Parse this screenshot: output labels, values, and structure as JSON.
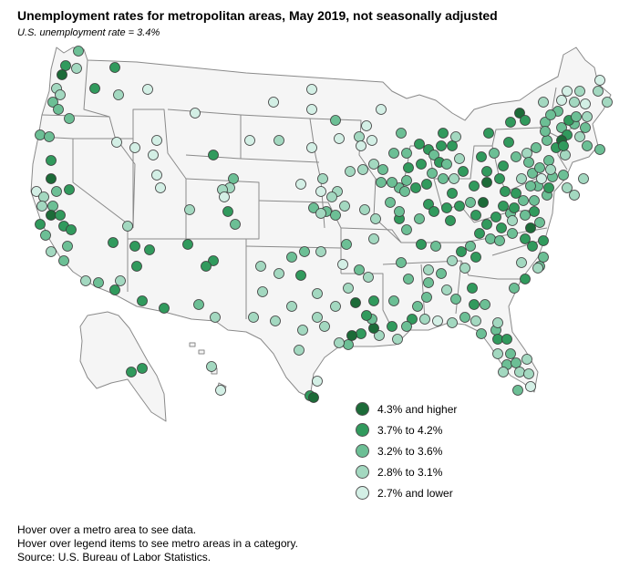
{
  "header": {
    "title": "Unemployment rates for metropolitan areas, May 2019, not seasonally adjusted",
    "subtitle": "U.S. unemployment rate = 3.4%"
  },
  "legend": {
    "items": [
      {
        "label": "4.3% and higher",
        "color": "#1c6b38",
        "cat": 0
      },
      {
        "label": "3.7% to 4.2%",
        "color": "#319a5d",
        "cat": 1
      },
      {
        "label": "3.2% to 3.6%",
        "color": "#6cbf95",
        "cat": 2
      },
      {
        "label": "2.8% to 3.1%",
        "color": "#a3d8c0",
        "cat": 3
      },
      {
        "label": "2.7% and lower",
        "color": "#d3efe5",
        "cat": 4
      }
    ]
  },
  "notes": {
    "hover_metro": "Hover over a metro area to see data.",
    "hover_legend": "Hover over legend items to see metro areas in a category.",
    "source": "Source: U.S. Bureau of Labor Statistics."
  },
  "map": {
    "metro_points": [
      [
        86,
        56,
        2
      ],
      [
        72,
        72,
        1
      ],
      [
        68,
        82,
        0
      ],
      [
        84,
        75,
        3
      ],
      [
        104,
        97,
        1
      ],
      [
        126,
        74,
        1
      ],
      [
        130,
        104,
        3
      ],
      [
        162,
        98,
        4
      ],
      [
        214,
        124,
        4
      ],
      [
        62,
        97,
        3
      ],
      [
        66,
        104,
        3
      ],
      [
        58,
        112,
        2
      ],
      [
        64,
        120,
        2
      ],
      [
        76,
        130,
        2
      ],
      [
        44,
        148,
        2
      ],
      [
        54,
        150,
        2
      ],
      [
        56,
        176,
        1
      ],
      [
        56,
        196,
        0
      ],
      [
        62,
        210,
        2
      ],
      [
        76,
        208,
        1
      ],
      [
        40,
        210,
        4
      ],
      [
        48,
        216,
        3
      ],
      [
        46,
        226,
        3
      ],
      [
        58,
        226,
        2
      ],
      [
        56,
        236,
        0
      ],
      [
        66,
        236,
        1
      ],
      [
        70,
        248,
        1
      ],
      [
        78,
        252,
        1
      ],
      [
        44,
        246,
        1
      ],
      [
        50,
        258,
        2
      ],
      [
        56,
        276,
        3
      ],
      [
        74,
        270,
        2
      ],
      [
        70,
        286,
        2
      ],
      [
        94,
        308,
        3
      ],
      [
        108,
        310,
        2
      ],
      [
        132,
        308,
        3
      ],
      [
        126,
        318,
        1
      ],
      [
        156,
        330,
        1
      ],
      [
        180,
        338,
        1
      ],
      [
        124,
        266,
        1
      ],
      [
        140,
        248,
        3
      ],
      [
        148,
        270,
        1
      ],
      [
        164,
        274,
        1
      ],
      [
        150,
        292,
        1
      ],
      [
        206,
        268,
        1
      ],
      [
        234,
        286,
        1
      ],
      [
        226,
        292,
        1
      ],
      [
        218,
        334,
        2
      ],
      [
        236,
        348,
        3
      ],
      [
        128,
        156,
        4
      ],
      [
        148,
        162,
        4
      ],
      [
        172,
        154,
        4
      ],
      [
        168,
        170,
        4
      ],
      [
        172,
        192,
        4
      ],
      [
        176,
        206,
        4
      ],
      [
        208,
        230,
        3
      ],
      [
        234,
        170,
        1
      ],
      [
        256,
        196,
        2
      ],
      [
        252,
        206,
        3
      ],
      [
        244,
        208,
        3
      ],
      [
        246,
        216,
        4
      ],
      [
        250,
        232,
        1
      ],
      [
        258,
        246,
        2
      ],
      [
        300,
        112,
        4
      ],
      [
        342,
        98,
        4
      ],
      [
        342,
        120,
        4
      ],
      [
        368,
        132,
        2
      ],
      [
        402,
        138,
        4
      ],
      [
        418,
        120,
        4
      ],
      [
        274,
        154,
        4
      ],
      [
        306,
        154,
        3
      ],
      [
        342,
        162,
        4
      ],
      [
        372,
        152,
        4
      ],
      [
        394,
        150,
        3
      ],
      [
        396,
        160,
        4
      ],
      [
        408,
        154,
        4
      ],
      [
        354,
        196,
        3
      ],
      [
        352,
        210,
        4
      ],
      [
        330,
        202,
        4
      ],
      [
        370,
        210,
        3
      ],
      [
        384,
        188,
        3
      ],
      [
        364,
        216,
        3
      ],
      [
        358,
        232,
        2
      ],
      [
        344,
        228,
        2
      ],
      [
        352,
        234,
        3
      ],
      [
        368,
        236,
        2
      ],
      [
        378,
        226,
        3
      ],
      [
        400,
        230,
        3
      ],
      [
        412,
        240,
        3
      ],
      [
        438,
        240,
        1
      ],
      [
        446,
        252,
        2
      ],
      [
        460,
        240,
        2
      ],
      [
        440,
        146,
        2
      ],
      [
        432,
        168,
        2
      ],
      [
        446,
        168,
        2
      ],
      [
        460,
        158,
        1
      ],
      [
        470,
        164,
        1
      ],
      [
        486,
        146,
        1
      ],
      [
        484,
        160,
        1
      ],
      [
        496,
        160,
        1
      ],
      [
        500,
        150,
        3
      ],
      [
        476,
        170,
        2
      ],
      [
        482,
        178,
        1
      ],
      [
        490,
        180,
        2
      ],
      [
        462,
        180,
        1
      ],
      [
        448,
        184,
        1
      ],
      [
        446,
        198,
        2
      ],
      [
        438,
        206,
        2
      ],
      [
        444,
        210,
        2
      ],
      [
        456,
        206,
        1
      ],
      [
        468,
        202,
        1
      ],
      [
        474,
        190,
        2
      ],
      [
        486,
        196,
        2
      ],
      [
        498,
        196,
        3
      ],
      [
        504,
        174,
        3
      ],
      [
        508,
        188,
        1
      ],
      [
        420,
        186,
        2
      ],
      [
        410,
        180,
        3
      ],
      [
        398,
        186,
        3
      ],
      [
        418,
        200,
        2
      ],
      [
        430,
        200,
        2
      ],
      [
        428,
        222,
        2
      ],
      [
        438,
        232,
        2
      ],
      [
        470,
        224,
        1
      ],
      [
        476,
        232,
        1
      ],
      [
        490,
        228,
        1
      ],
      [
        496,
        212,
        1
      ],
      [
        494,
        242,
        1
      ],
      [
        504,
        226,
        1
      ],
      [
        516,
        222,
        2
      ],
      [
        522,
        236,
        1
      ],
      [
        530,
        222,
        0
      ],
      [
        520,
        204,
        1
      ],
      [
        534,
        200,
        0
      ],
      [
        534,
        188,
        1
      ],
      [
        528,
        172,
        1
      ],
      [
        542,
        168,
        2
      ],
      [
        558,
        156,
        1
      ],
      [
        536,
        146,
        1
      ],
      [
        560,
        134,
        1
      ],
      [
        570,
        124,
        0
      ],
      [
        576,
        132,
        1
      ],
      [
        596,
        112,
        3
      ],
      [
        598,
        134,
        2
      ],
      [
        612,
        122,
        2
      ],
      [
        616,
        110,
        4
      ],
      [
        622,
        100,
        4
      ],
      [
        630,
        112,
        3
      ],
      [
        636,
        100,
        3
      ],
      [
        616,
        140,
        2
      ],
      [
        622,
        148,
        1
      ],
      [
        630,
        136,
        2
      ],
      [
        636,
        150,
        3
      ],
      [
        644,
        160,
        2
      ],
      [
        658,
        164,
        2
      ],
      [
        610,
        162,
        1
      ],
      [
        616,
        154,
        0
      ],
      [
        600,
        154,
        2
      ],
      [
        588,
        162,
        2
      ],
      [
        578,
        168,
        3
      ],
      [
        566,
        172,
        2
      ],
      [
        552,
        182,
        1
      ],
      [
        548,
        196,
        1
      ],
      [
        554,
        210,
        1
      ],
      [
        566,
        212,
        1
      ],
      [
        572,
        196,
        3
      ],
      [
        584,
        190,
        2
      ],
      [
        592,
        184,
        2
      ],
      [
        602,
        176,
        2
      ],
      [
        590,
        204,
        2
      ],
      [
        600,
        214,
        2
      ],
      [
        586,
        232,
        1
      ],
      [
        592,
        244,
        2
      ],
      [
        582,
        250,
        0
      ],
      [
        576,
        262,
        1
      ],
      [
        584,
        270,
        1
      ],
      [
        562,
        256,
        2
      ],
      [
        550,
        250,
        1
      ],
      [
        538,
        262,
        2
      ],
      [
        526,
        256,
        1
      ],
      [
        516,
        270,
        2
      ],
      [
        522,
        282,
        1
      ],
      [
        506,
        276,
        1
      ],
      [
        496,
        286,
        3
      ],
      [
        510,
        294,
        3
      ],
      [
        478,
        270,
        2
      ],
      [
        462,
        268,
        1
      ],
      [
        470,
        296,
        3
      ],
      [
        484,
        300,
        2
      ],
      [
        490,
        318,
        3
      ],
      [
        470,
        310,
        2
      ],
      [
        500,
        328,
        2
      ],
      [
        518,
        316,
        1
      ],
      [
        520,
        334,
        1
      ],
      [
        522,
        352,
        3
      ],
      [
        528,
        366,
        2
      ],
      [
        532,
        334,
        2
      ],
      [
        510,
        348,
        2
      ],
      [
        496,
        354,
        3
      ],
      [
        480,
        352,
        4
      ],
      [
        466,
        350,
        3
      ],
      [
        452,
        350,
        1
      ],
      [
        446,
        358,
        2
      ],
      [
        430,
        358,
        1
      ],
      [
        436,
        372,
        3
      ],
      [
        416,
        368,
        3
      ],
      [
        410,
        360,
        0
      ],
      [
        408,
        350,
        2
      ],
      [
        402,
        346,
        1
      ],
      [
        390,
        332,
        0
      ],
      [
        404,
        304,
        3
      ],
      [
        394,
        296,
        2
      ],
      [
        376,
        290,
        4
      ],
      [
        382,
        316,
        3
      ],
      [
        368,
        336,
        3
      ],
      [
        348,
        322,
        3
      ],
      [
        330,
        302,
        1
      ],
      [
        320,
        282,
        2
      ],
      [
        334,
        276,
        2
      ],
      [
        352,
        276,
        3
      ],
      [
        380,
        268,
        2
      ],
      [
        410,
        262,
        3
      ],
      [
        440,
        288,
        2
      ],
      [
        448,
        306,
        2
      ],
      [
        468,
        326,
        2
      ],
      [
        458,
        336,
        2
      ],
      [
        432,
        330,
        2
      ],
      [
        410,
        330,
        1
      ],
      [
        396,
        366,
        1
      ],
      [
        382,
        378,
        2
      ],
      [
        386,
        368,
        0
      ],
      [
        372,
        376,
        3
      ],
      [
        356,
        358,
        3
      ],
      [
        348,
        348,
        3
      ],
      [
        320,
        336,
        3
      ],
      [
        302,
        352,
        3
      ],
      [
        278,
        348,
        3
      ],
      [
        286,
        292,
        3
      ],
      [
        288,
        320,
        3
      ],
      [
        306,
        300,
        3
      ],
      [
        332,
        362,
        3
      ],
      [
        328,
        384,
        3
      ],
      [
        348,
        418,
        4
      ],
      [
        340,
        434,
        1
      ],
      [
        344,
        436,
        0
      ],
      [
        232,
        402,
        3
      ],
      [
        242,
        428,
        4
      ],
      [
        144,
        408,
        1
      ],
      [
        156,
        404,
        1
      ],
      [
        544,
        362,
        2
      ],
      [
        546,
        372,
        1
      ],
      [
        556,
        372,
        1
      ],
      [
        560,
        388,
        2
      ],
      [
        556,
        400,
        2
      ],
      [
        566,
        398,
        2
      ],
      [
        570,
        408,
        3
      ],
      [
        578,
        394,
        3
      ],
      [
        580,
        410,
        3
      ],
      [
        546,
        388,
        3
      ],
      [
        552,
        408,
        3
      ],
      [
        568,
        428,
        2
      ],
      [
        582,
        424,
        4
      ],
      [
        546,
        354,
        3
      ],
      [
        564,
        316,
        2
      ],
      [
        572,
        288,
        3
      ],
      [
        576,
        306,
        1
      ],
      [
        592,
        292,
        2
      ],
      [
        548,
        264,
        2
      ],
      [
        596,
        264,
        1
      ],
      [
        596,
        282,
        2
      ],
      [
        590,
        294,
        3
      ],
      [
        560,
        234,
        2
      ],
      [
        576,
        236,
        2
      ],
      [
        564,
        228,
        1
      ],
      [
        552,
        226,
        1
      ],
      [
        544,
        238,
        1
      ],
      [
        534,
        246,
        1
      ],
      [
        586,
        220,
        2
      ],
      [
        606,
        194,
        2
      ],
      [
        602,
        206,
        1
      ],
      [
        618,
        192,
        2
      ],
      [
        622,
        206,
        3
      ],
      [
        630,
        214,
        3
      ],
      [
        640,
        196,
        3
      ],
      [
        620,
        170,
        3
      ],
      [
        604,
        186,
        3
      ],
      [
        594,
        196,
        4
      ],
      [
        580,
        178,
        2
      ],
      [
        582,
        204,
        2
      ],
      [
        574,
        220,
        2
      ],
      [
        562,
        242,
        3
      ],
      [
        624,
        132,
        1
      ],
      [
        642,
        114,
        4
      ],
      [
        644,
        128,
        3
      ],
      [
        632,
        128,
        2
      ],
      [
        658,
        88,
        4
      ],
      [
        656,
        100,
        3
      ],
      [
        666,
        112,
        3
      ],
      [
        642,
        140,
        2
      ],
      [
        618,
        160,
        1
      ],
      [
        604,
        126,
        2
      ],
      [
        598,
        144,
        2
      ]
    ]
  }
}
